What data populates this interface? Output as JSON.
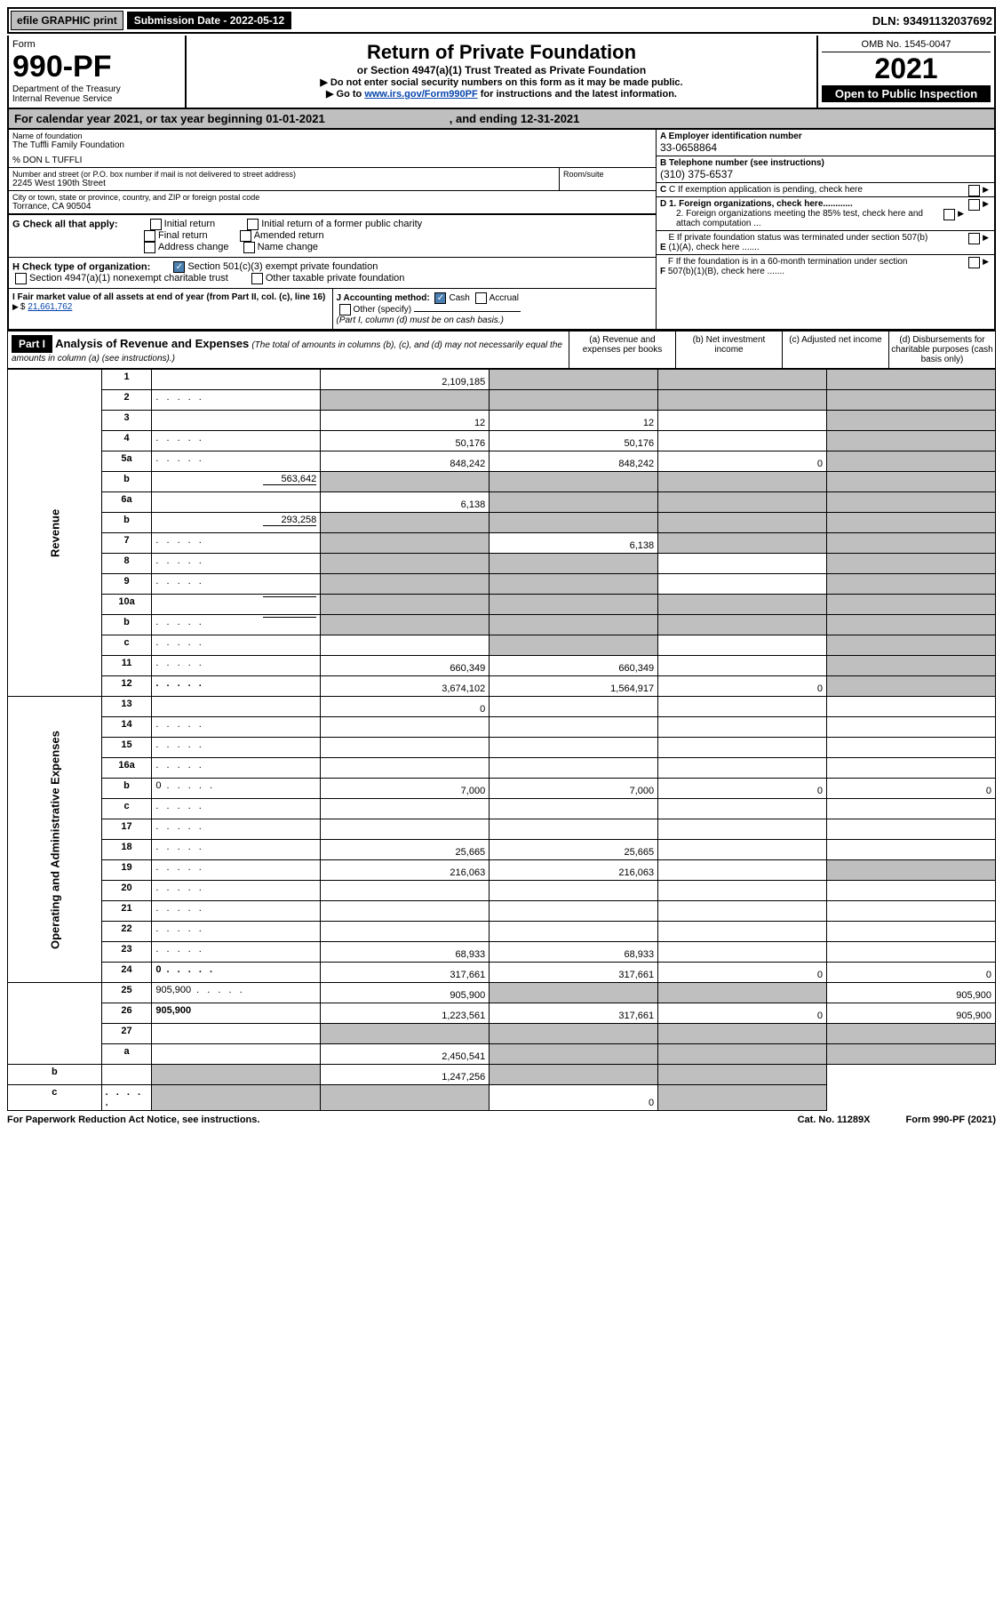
{
  "efile": {
    "label_efile": "efile",
    "label_graphic": "GRAPHIC",
    "label_print": "print",
    "sub_date_label": "Submission Date - 2022-05-12",
    "dln": "DLN: 93491132037692"
  },
  "header": {
    "form_label": "Form",
    "form_no": "990-PF",
    "dept1": "Department of the Treasury",
    "dept2": "Internal Revenue Service",
    "title": "Return of Private Foundation",
    "subtitle": "or Section 4947(a)(1) Trust Treated as Private Foundation",
    "instr1": "▶ Do not enter social security numbers on this form as it may be made public.",
    "instr2_pre": "▶ Go to ",
    "instr2_link": "www.irs.gov/Form990PF",
    "instr2_post": " for instructions and the latest information.",
    "omb": "OMB No. 1545-0047",
    "year": "2021",
    "open_pub": "Open to Public Inspection"
  },
  "cal_year": {
    "text1": "For calendar year 2021, or tax year beginning 01-01-2021",
    "text2": ", and ending 12-31-2021"
  },
  "info": {
    "name_label": "Name of foundation",
    "name": "The Tuffli Family Foundation",
    "care_of": "% DON L TUFFLI",
    "addr_label": "Number and street (or P.O. box number if mail is not delivered to street address)",
    "addr": "2245 West 190th Street",
    "room_label": "Room/suite",
    "city_label": "City or town, state or province, country, and ZIP or foreign postal code",
    "city": "Torrance, CA  90504",
    "a_label": "A Employer identification number",
    "a_val": "33-0658864",
    "b_label": "B Telephone number (see instructions)",
    "b_val": "(310) 375-6537",
    "c_label": "C If exemption application is pending, check here",
    "d1_label": "D 1. Foreign organizations, check here............",
    "d2_label": "2. Foreign organizations meeting the 85% test, check here and attach computation ...",
    "e_label": "E  If private foundation status was terminated under section 507(b)(1)(A), check here .......",
    "f_label": "F  If the foundation is in a 60-month termination under section 507(b)(1)(B), check here .......",
    "g_label": "G Check all that apply:",
    "g_opts": [
      "Initial return",
      "Initial return of a former public charity",
      "Final return",
      "Amended return",
      "Address change",
      "Name change"
    ],
    "h_label": "H Check type of organization:",
    "h_opt1": "Section 501(c)(3) exempt private foundation",
    "h_opt2": "Section 4947(a)(1) nonexempt charitable trust",
    "h_opt3": "Other taxable private foundation",
    "i_label": "I Fair market value of all assets at end of year (from Part II, col. (c), line 16)",
    "i_val": "21,661,762",
    "j_label": "J Accounting method:",
    "j_cash": "Cash",
    "j_accrual": "Accrual",
    "j_other": "Other (specify)",
    "j_note": "(Part I, column (d) must be on cash basis.)"
  },
  "part1": {
    "label": "Part I",
    "title": "Analysis of Revenue and Expenses",
    "title_note": "(The total of amounts in columns (b), (c), and (d) may not necessarily equal the amounts in column (a) (see instructions).)",
    "col_a": "(a)   Revenue and expenses per books",
    "col_b": "(b)   Net investment income",
    "col_c": "(c)   Adjusted net income",
    "col_d": "(d)  Disbursements for charitable purposes (cash basis only)"
  },
  "vlabels": {
    "revenue": "Revenue",
    "expenses": "Operating and Administrative Expenses"
  },
  "rows": [
    {
      "n": "1",
      "d": "",
      "a": "2,109,185",
      "b": "",
      "c": "",
      "shade_b": true,
      "shade_c": true,
      "shade_d": true
    },
    {
      "n": "2",
      "d": "",
      "dotted": true,
      "a": "",
      "b": "",
      "c": "",
      "shade_a": true,
      "shade_b": true,
      "shade_c": true,
      "shade_d": true
    },
    {
      "n": "3",
      "d": "",
      "a": "12",
      "b": "12",
      "c": "",
      "shade_d": true
    },
    {
      "n": "4",
      "d": "",
      "dotted": true,
      "a": "50,176",
      "b": "50,176",
      "c": "",
      "shade_d": true
    },
    {
      "n": "5a",
      "d": "",
      "dotted": true,
      "a": "848,242",
      "b": "848,242",
      "c": "0",
      "shade_d": true
    },
    {
      "n": "b",
      "d": "",
      "inline": "563,642",
      "a": "",
      "b": "",
      "c": "",
      "shade_a": true,
      "shade_b": true,
      "shade_c": true,
      "shade_d": true
    },
    {
      "n": "6a",
      "d": "",
      "a": "6,138",
      "b": "",
      "c": "",
      "shade_b": true,
      "shade_c": true,
      "shade_d": true
    },
    {
      "n": "b",
      "d": "",
      "inline": "293,258",
      "a": "",
      "b": "",
      "c": "",
      "shade_a": true,
      "shade_b": true,
      "shade_c": true,
      "shade_d": true
    },
    {
      "n": "7",
      "d": "",
      "dotted": true,
      "a": "",
      "b": "6,138",
      "c": "",
      "shade_a": true,
      "shade_c": true,
      "shade_d": true
    },
    {
      "n": "8",
      "d": "",
      "dotted": true,
      "a": "",
      "b": "",
      "c": "",
      "shade_a": true,
      "shade_b": true,
      "shade_d": true
    },
    {
      "n": "9",
      "d": "",
      "dotted": true,
      "a": "",
      "b": "",
      "c": "",
      "shade_a": true,
      "shade_b": true,
      "shade_d": true
    },
    {
      "n": "10a",
      "d": "",
      "inline": "",
      "a": "",
      "b": "",
      "c": "",
      "shade_a": true,
      "shade_b": true,
      "shade_c": true,
      "shade_d": true
    },
    {
      "n": "b",
      "d": "",
      "dotted": true,
      "inline": "",
      "a": "",
      "b": "",
      "c": "",
      "shade_a": true,
      "shade_b": true,
      "shade_c": true,
      "shade_d": true
    },
    {
      "n": "c",
      "d": "",
      "dotted": true,
      "a": "",
      "b": "",
      "c": "",
      "shade_b": true,
      "shade_d": true
    },
    {
      "n": "11",
      "d": "",
      "dotted": true,
      "a": "660,349",
      "b": "660,349",
      "c": "",
      "shade_d": true
    },
    {
      "n": "12",
      "d": "",
      "bold": true,
      "dotted": true,
      "a": "3,674,102",
      "b": "1,564,917",
      "c": "0",
      "shade_d": true
    },
    {
      "n": "13",
      "d": "",
      "a": "0",
      "b": "",
      "c": ""
    },
    {
      "n": "14",
      "d": "",
      "dotted": true,
      "a": "",
      "b": "",
      "c": ""
    },
    {
      "n": "15",
      "d": "",
      "dotted": true,
      "a": "",
      "b": "",
      "c": ""
    },
    {
      "n": "16a",
      "d": "",
      "dotted": true,
      "a": "",
      "b": "",
      "c": ""
    },
    {
      "n": "b",
      "d": "0",
      "dotted": true,
      "a": "7,000",
      "b": "7,000",
      "c": "0"
    },
    {
      "n": "c",
      "d": "",
      "dotted": true,
      "a": "",
      "b": "",
      "c": ""
    },
    {
      "n": "17",
      "d": "",
      "dotted": true,
      "a": "",
      "b": "",
      "c": ""
    },
    {
      "n": "18",
      "d": "",
      "dotted": true,
      "a": "25,665",
      "b": "25,665",
      "c": ""
    },
    {
      "n": "19",
      "d": "",
      "dotted": true,
      "a": "216,063",
      "b": "216,063",
      "c": "",
      "shade_d": true
    },
    {
      "n": "20",
      "d": "",
      "dotted": true,
      "a": "",
      "b": "",
      "c": ""
    },
    {
      "n": "21",
      "d": "",
      "dotted": true,
      "a": "",
      "b": "",
      "c": ""
    },
    {
      "n": "22",
      "d": "",
      "dotted": true,
      "a": "",
      "b": "",
      "c": ""
    },
    {
      "n": "23",
      "d": "",
      "dotted": true,
      "a": "68,933",
      "b": "68,933",
      "c": ""
    },
    {
      "n": "24",
      "d": "0",
      "bold": true,
      "dotted": true,
      "a": "317,661",
      "b": "317,661",
      "c": "0"
    },
    {
      "n": "25",
      "d": "905,900",
      "dotted": true,
      "a": "905,900",
      "b": "",
      "c": "",
      "shade_b": true,
      "shade_c": true
    },
    {
      "n": "26",
      "d": "905,900",
      "bold": true,
      "a": "1,223,561",
      "b": "317,661",
      "c": "0"
    },
    {
      "n": "27",
      "d": "",
      "a": "",
      "b": "",
      "c": "",
      "shade_a": true,
      "shade_b": true,
      "shade_c": true,
      "shade_d": true
    },
    {
      "n": "a",
      "d": "",
      "bold": true,
      "a": "2,450,541",
      "b": "",
      "c": "",
      "shade_b": true,
      "shade_c": true,
      "shade_d": true
    },
    {
      "n": "b",
      "d": "",
      "bold": true,
      "a": "",
      "b": "1,247,256",
      "c": "",
      "shade_a": true,
      "shade_c": true,
      "shade_d": true
    },
    {
      "n": "c",
      "d": "",
      "bold": true,
      "dotted": true,
      "a": "",
      "b": "",
      "c": "0",
      "shade_a": true,
      "shade_b": true,
      "shade_d": true
    }
  ],
  "footer": {
    "left": "For Paperwork Reduction Act Notice, see instructions.",
    "cat": "Cat. No. 11289X",
    "form": "Form 990-PF (2021)"
  }
}
